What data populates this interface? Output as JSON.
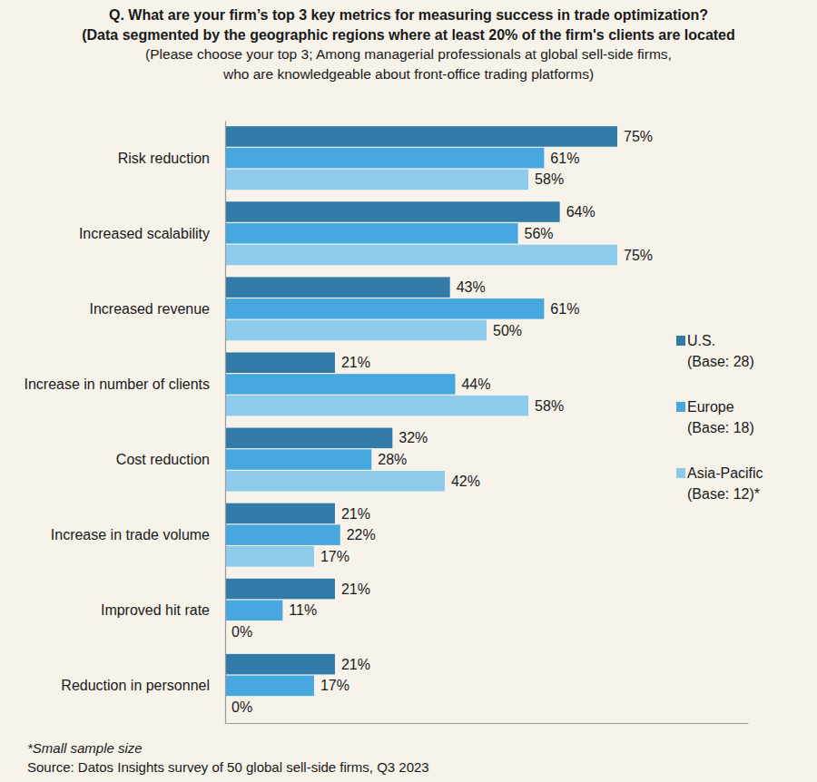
{
  "chart_data": {
    "type": "bar",
    "orientation": "horizontal",
    "title": [
      "Q. What are your firm’s top 3 key metrics for measuring success in trade optimization?",
      "(Data segmented by the geographic regions where at least 20% of the firm's clients are located"
    ],
    "subtitle": [
      "(Please choose your top 3;  Among managerial professionals at global sell-side firms,",
      "who are knowledgeable about front-office trading platforms)"
    ],
    "categories": [
      "Risk reduction",
      "Increased scalability",
      "Increased revenue",
      "Increase in number of clients",
      "Cost reduction",
      "Increase in trade volume",
      "Improved hit rate",
      "Reduction in personnel"
    ],
    "series": [
      {
        "name": "U.S. (Base: 28)",
        "color": "#327aa8",
        "values": [
          75,
          64,
          43,
          21,
          32,
          21,
          21,
          21
        ],
        "value_labels": [
          "75%",
          "64%",
          "43%",
          "21%",
          "32%",
          "21%",
          "21%",
          "21%"
        ]
      },
      {
        "name": "Europe (Base: 18)",
        "color": "#46a8df",
        "values": [
          61,
          56,
          61,
          44,
          28,
          22,
          11,
          17
        ],
        "value_labels": [
          "61%",
          "56%",
          "61%",
          "44%",
          "28%",
          "22%",
          "11%",
          "17%"
        ]
      },
      {
        "name": "Asia-Pacific (Base: 12)*",
        "color": "#8ccbec",
        "values": [
          58,
          75,
          50,
          58,
          42,
          17,
          0,
          0
        ],
        "value_labels": [
          "58%",
          "75%",
          "50%",
          "58%",
          "42%",
          "17%",
          "0%",
          "0%"
        ]
      }
    ],
    "xlim": [
      0,
      100
    ],
    "xticks": [],
    "tick_labels": "y",
    "grid": false,
    "data_labels": true,
    "legend": "right",
    "footnote": "*Small sample size",
    "source": "Source: Datos Insights survey of 50 global sell-side firms, Q3 2023"
  }
}
